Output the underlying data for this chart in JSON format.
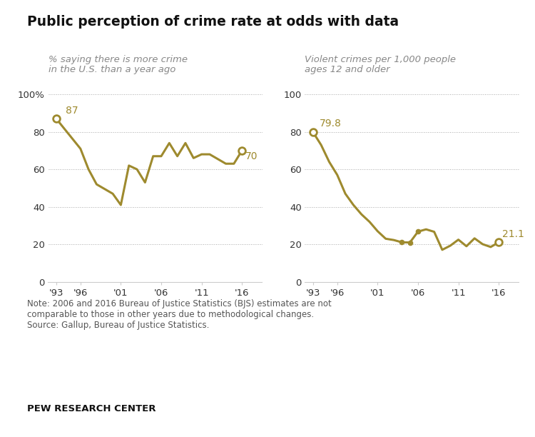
{
  "title": "Public perception of crime rate at odds with data",
  "subtitle_left": "% saying there is more crime\nin the U.S. than a year ago",
  "subtitle_right": "Violent crimes per 1,000 people\nages 12 and older",
  "note": "Note: 2006 and 2016 Bureau of Justice Statistics (BJS) estimates are not\ncomparable to those in other years due to methodological changes.\nSource: Gallup, Bureau of Justice Statistics.",
  "source_label": "PEW RESEARCH CENTER",
  "line_color": "#9e8a2e",
  "left_years": [
    1993,
    1996,
    1997,
    1998,
    2000,
    2001,
    2002,
    2003,
    2004,
    2005,
    2006,
    2007,
    2008,
    2009,
    2010,
    2011,
    2012,
    2014,
    2015,
    2016
  ],
  "left_values": [
    87,
    71,
    60,
    52,
    47,
    41,
    62,
    60,
    53,
    67,
    67,
    74,
    67,
    74,
    66,
    68,
    68,
    63,
    63,
    70
  ],
  "right_years": [
    1993,
    1994,
    1995,
    1996,
    1997,
    1998,
    1999,
    2000,
    2001,
    2002,
    2003,
    2004,
    2005,
    2006,
    2007,
    2008,
    2009,
    2010,
    2011,
    2012,
    2013,
    2014,
    2015,
    2016
  ],
  "right_values": [
    79.8,
    73.0,
    64.0,
    57.0,
    47.0,
    41.0,
    36.0,
    32.0,
    27.0,
    23.0,
    22.3,
    21.1,
    21.0,
    26.8,
    28.0,
    26.7,
    17.1,
    19.3,
    22.5,
    19.0,
    23.2,
    20.1,
    18.6,
    21.1
  ],
  "left_label_start": "87",
  "left_label_end": "70",
  "right_label_start": "79.8",
  "right_label_end": "21.1",
  "bg_color": "#ffffff",
  "grid_color": "#aaaaaa",
  "text_color": "#333333",
  "subtitle_color": "#888888",
  "dot_years": [
    2004,
    2005,
    2006
  ],
  "dot_vals": [
    21.1,
    21.0,
    26.8
  ]
}
